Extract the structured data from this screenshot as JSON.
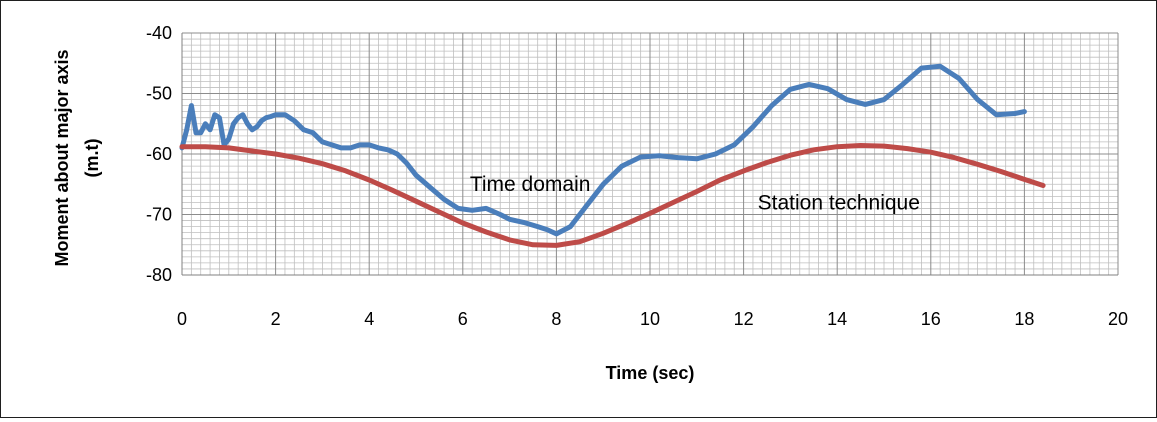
{
  "chart_data": {
    "type": "line",
    "title": "",
    "xlabel": "Time (sec)",
    "ylabel": "Moment about major axis (m.t)",
    "xlim": [
      0,
      20
    ],
    "ylim": [
      -80,
      -40
    ],
    "x_ticks": [
      0,
      2,
      4,
      6,
      8,
      10,
      12,
      14,
      16,
      18,
      20
    ],
    "y_ticks": [
      -40,
      -50,
      -60,
      -70,
      -80
    ],
    "grid": "major and minor",
    "legend": "none",
    "annotations": [
      {
        "text": "Time domain",
        "series": 0
      },
      {
        "text": "Station technique",
        "series": 1
      }
    ],
    "series": [
      {
        "name": "Time domain",
        "color": "#4a7ebb",
        "x": [
          0,
          0.1,
          0.2,
          0.3,
          0.4,
          0.5,
          0.6,
          0.7,
          0.8,
          0.9,
          1.0,
          1.1,
          1.2,
          1.3,
          1.4,
          1.5,
          1.6,
          1.7,
          1.8,
          1.9,
          2.0,
          2.2,
          2.4,
          2.6,
          2.8,
          3.0,
          3.2,
          3.4,
          3.6,
          3.8,
          4.0,
          4.2,
          4.4,
          4.6,
          4.8,
          5.0,
          5.3,
          5.6,
          5.9,
          6.2,
          6.5,
          6.8,
          7.0,
          7.3,
          7.6,
          7.8,
          8.0,
          8.3,
          8.6,
          9.0,
          9.4,
          9.8,
          10.2,
          10.6,
          11.0,
          11.4,
          11.8,
          12.2,
          12.6,
          13.0,
          13.4,
          13.8,
          14.2,
          14.6,
          15.0,
          15.4,
          15.8,
          16.2,
          16.6,
          17.0,
          17.4,
          17.8,
          18.0
        ],
        "values": [
          -59,
          -56,
          -52,
          -56.5,
          -56.5,
          -55,
          -56,
          -53.5,
          -54,
          -58.5,
          -57.5,
          -55,
          -54,
          -53.5,
          -55,
          -56,
          -55.5,
          -54.5,
          -54,
          -53.8,
          -53.5,
          -53.5,
          -54.5,
          -56,
          -56.5,
          -58,
          -58.5,
          -59,
          -59,
          -58.5,
          -58.5,
          -59,
          -59.3,
          -60,
          -61.5,
          -63.5,
          -65.5,
          -67.5,
          -69,
          -69.3,
          -69,
          -70,
          -70.8,
          -71.3,
          -72,
          -72.5,
          -73.2,
          -72,
          -69,
          -65,
          -62,
          -60.5,
          -60.3,
          -60.6,
          -60.8,
          -60,
          -58.5,
          -55.5,
          -52,
          -49.3,
          -48.5,
          -49.2,
          -51,
          -51.8,
          -51,
          -48.5,
          -45.8,
          -45.5,
          -47.5,
          -51,
          -53.5,
          -53.3,
          -53
        ]
      },
      {
        "name": "Station technique",
        "color": "#be4b48",
        "x": [
          0,
          0.5,
          1,
          1.5,
          2,
          2.5,
          3,
          3.5,
          4,
          4.5,
          5,
          5.5,
          6,
          6.5,
          7,
          7.5,
          8,
          8.5,
          9,
          9.5,
          10,
          10.5,
          11,
          11.5,
          12,
          12.5,
          13,
          13.5,
          14,
          14.5,
          15,
          15.5,
          16,
          16.5,
          17,
          17.5,
          18,
          18.4
        ],
        "values": [
          -58.8,
          -58.8,
          -59,
          -59.5,
          -60,
          -60.7,
          -61.6,
          -62.8,
          -64.3,
          -66,
          -67.8,
          -69.6,
          -71.4,
          -72.9,
          -74.2,
          -75,
          -75.1,
          -74.5,
          -73.1,
          -71.5,
          -69.8,
          -68,
          -66.2,
          -64.3,
          -62.8,
          -61.4,
          -60.2,
          -59.3,
          -58.8,
          -58.6,
          -58.7,
          -59.1,
          -59.7,
          -60.6,
          -61.7,
          -62.9,
          -64.2,
          -65.2
        ]
      }
    ]
  }
}
